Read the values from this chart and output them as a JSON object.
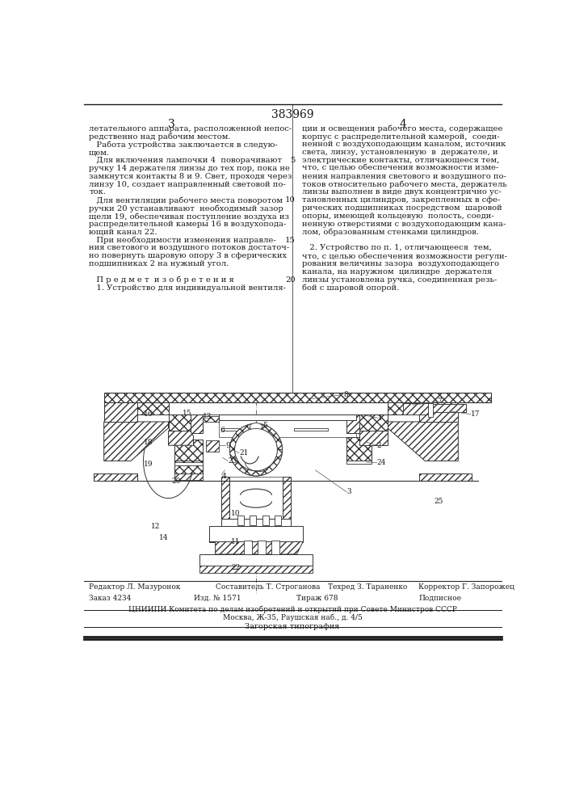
{
  "patent_number": "383969",
  "page_col_left": "3",
  "page_col_right": "4",
  "bg_color": "#ffffff",
  "text_color": "#1a1a1a",
  "line_color": "#1a1a1a",
  "body_text_left": [
    "летательного аппарата, расположенной непос-",
    "редственно над рабочим местом.",
    "   Работа устройства заключается в следую-",
    "щем.",
    "   Для включения лампочки 4  поворачивают",
    "ручку 14 держателя линзы до тех пор, пока не",
    "замкнутся контакты 8 и 9. Свет, проходя через",
    "линзу 10, создает направленный световой по-",
    "ток.",
    "   Для вентиляции рабочего места поворотом",
    "ручки 20 устанавливают  необходимый зазор",
    "щели 19, обеспечивая поступление воздуха из",
    "распределительной камеры 16 в воздухопода-",
    "ющий канал 22.",
    "   При необходимости изменения направле-",
    "ния светового и воздушного потоков достаточ-",
    "но повернуть шаровую опору 3 в сферических",
    "подшипниках 2 на нужный угол.",
    "",
    "   П р е д м е т  и з о б р е т е н и я",
    "   1. Устройство для индивидуальной вентиля-"
  ],
  "body_text_right": [
    "ции и освещения рабочего места, содержащее",
    "корпус с распределительной камерой,  соеди-",
    "ненной с воздухоподающим каналом, источник",
    "света, линзу, установленную  в  держателе, и",
    "электрические контакты, отличающееся тем,",
    "что, с целью обеспечения возможности изме-",
    "нения направления светового и воздушного по-",
    "токов относительно рабочего места, держатель",
    "линзы выполнен в виде двух концентрично ус-",
    "тановленных цилиндров, закрепленных в сфе-",
    "рических подшипниках посредством  шаровой",
    "опоры, имеющей кольцевую  полость, соеди-",
    "ненную отверстиями с воздухоподающим кана-",
    "лом, образованным стенками цилиндров.",
    "",
    "   2. Устройство по п. 1, отличающееся  тем,",
    "что, с целью обеспечения возможности регули-",
    "рования величины зазора  воздухоподающего",
    "канала, на наружном  цилиндре  держателя",
    "линзы установлена ручка, соединенная резь-",
    "бой с шаровой опорой."
  ],
  "line_num_indices": [
    4,
    9,
    14,
    19
  ],
  "line_numbers": [
    "5",
    "10",
    "15",
    "20"
  ],
  "footer_editor": "Редактор Л. Мазуронок",
  "footer_composer": "Составитель Т. Строганова",
  "footer_tehred": "Техред З. Тараненко",
  "footer_korrektor": "Корректор Г. Запорожец",
  "footer_zakaz": "Заказ 4234",
  "footer_izd": "Изд. № 1571",
  "footer_tirazh": "Тираж 678",
  "footer_podpisnoe": "Подписное",
  "footer_tsniip": "ЦНИИПИ Комитета по делам изобретений и открытий при Совете Министров СССР",
  "footer_address": "Москва, Ж-35, Раушская наб., д. 4/5",
  "footer_zagora": "Загорская типография",
  "hatch_color": "#555555",
  "draw_color": "#333333"
}
